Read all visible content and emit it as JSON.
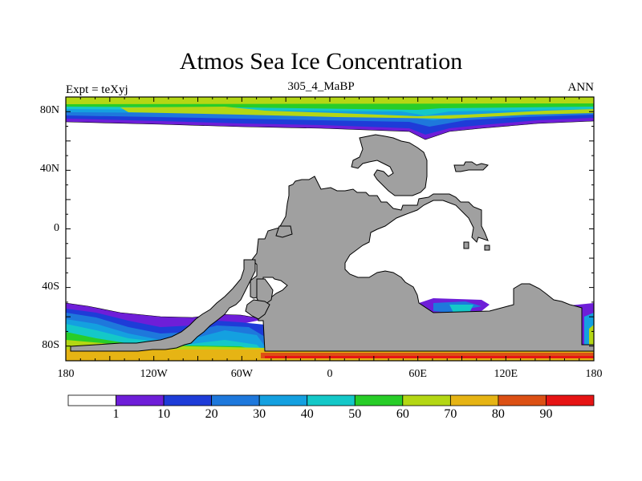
{
  "title": "Atmos Sea Ice Concentration",
  "left_label": "Expt = teXyj",
  "center_label": "305_4_MaBP",
  "right_label": "ANN",
  "lat_ticks": [
    {
      "label": "80N",
      "lat": 80
    },
    {
      "label": "40N",
      "lat": 40
    },
    {
      "label": "0",
      "lat": 0
    },
    {
      "label": "40S",
      "lat": -40
    },
    {
      "label": "80S",
      "lat": -80
    }
  ],
  "lon_ticks": [
    {
      "label": "180",
      "lon": -180
    },
    {
      "label": "120W",
      "lon": -120
    },
    {
      "label": "60W",
      "lon": -60
    },
    {
      "label": "0",
      "lon": 0
    },
    {
      "label": "60E",
      "lon": 60
    },
    {
      "label": "120E",
      "lon": 120
    },
    {
      "label": "180",
      "lon": 180
    }
  ],
  "colorbar": {
    "colors": [
      "#ffffff",
      "#6e1ed8",
      "#1e3cd8",
      "#1e78dc",
      "#14a0e0",
      "#14c8c8",
      "#28cd28",
      "#b4d714",
      "#e6b414",
      "#dc5014",
      "#e61414"
    ],
    "labels": [
      "1",
      "10",
      "20",
      "30",
      "40",
      "50",
      "60",
      "70",
      "80",
      "90"
    ]
  },
  "colors": {
    "land": "#a0a0a0",
    "land_outline": "#000000",
    "ocean": "#ffffff"
  }
}
